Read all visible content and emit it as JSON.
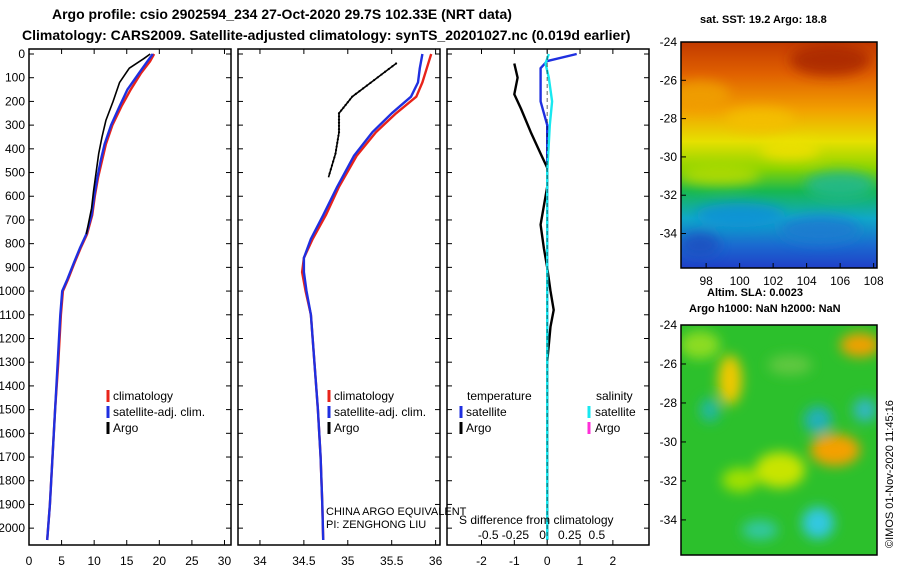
{
  "header": {
    "line1": "Argo profile: csio 2902594_234 27-Oct-2020 29.7S 102.33E (NRT data)",
    "line2": "Climatology: CARS2009. Satellite-adjusted climatology: synTS_20201027.nc (0.019d earlier)"
  },
  "colors": {
    "climatology": "#e8231a",
    "satellite": "#1f2fe0",
    "argo": "#000000",
    "salinity_satellite": "#18e8f0",
    "salinity_argo": "#ff2fd8"
  },
  "chart_data": [
    {
      "type": "line",
      "panel": "temperature",
      "ylabel_ticks": [
        "0",
        "100",
        "200",
        "300",
        "400",
        "500",
        "600",
        "700",
        "800",
        "900",
        "1000",
        "1100",
        "1200",
        "1300",
        "1400",
        "1500",
        "1600",
        "1700",
        "1800",
        "1900",
        "2000"
      ],
      "xticks": [
        "0",
        "5",
        "10",
        "15",
        "20",
        "25",
        "30"
      ],
      "xlim": [
        0,
        31
      ],
      "ylim": [
        2050,
        0
      ],
      "series": [
        {
          "name": "climatology",
          "color": "#e8231a",
          "points": [
            [
              19.2,
              0
            ],
            [
              18.6,
              30
            ],
            [
              17.2,
              80
            ],
            [
              15.6,
              150
            ],
            [
              14.2,
              220
            ],
            [
              12.8,
              300
            ],
            [
              11.8,
              380
            ],
            [
              11.2,
              450
            ],
            [
              10.6,
              520
            ],
            [
              10.1,
              600
            ],
            [
              9.7,
              680
            ],
            [
              8.9,
              760
            ],
            [
              7.9,
              820
            ],
            [
              7.0,
              880
            ],
            [
              6.0,
              950
            ],
            [
              5.2,
              1000
            ],
            [
              4.9,
              1100
            ],
            [
              4.5,
              1300
            ],
            [
              4.0,
              1500
            ],
            [
              3.6,
              1700
            ],
            [
              3.2,
              1900
            ],
            [
              2.8,
              2050
            ]
          ]
        },
        {
          "name": "satellite-adj. clim.",
          "color": "#1f2fe0",
          "points": [
            [
              19.0,
              0
            ],
            [
              18.2,
              30
            ],
            [
              16.9,
              80
            ],
            [
              15.1,
              150
            ],
            [
              13.9,
              220
            ],
            [
              12.6,
              300
            ],
            [
              11.6,
              380
            ],
            [
              11.0,
              450
            ],
            [
              10.5,
              520
            ],
            [
              10.0,
              600
            ],
            [
              9.6,
              680
            ],
            [
              8.8,
              760
            ],
            [
              7.8,
              820
            ],
            [
              6.9,
              880
            ],
            [
              5.9,
              950
            ],
            [
              5.1,
              1000
            ],
            [
              4.8,
              1100
            ],
            [
              4.4,
              1300
            ],
            [
              4.0,
              1500
            ],
            [
              3.6,
              1700
            ],
            [
              3.2,
              1900
            ],
            [
              2.8,
              2050
            ]
          ]
        },
        {
          "name": "Argo",
          "color": "#000000",
          "points": [
            [
              18.6,
              0
            ],
            [
              17.6,
              20
            ],
            [
              15.4,
              60
            ],
            [
              13.9,
              120
            ],
            [
              12.9,
              200
            ],
            [
              11.8,
              280
            ],
            [
              11.2,
              350
            ],
            [
              10.7,
              420
            ],
            [
              10.3,
              500
            ],
            [
              9.9,
              580
            ],
            [
              9.6,
              650
            ],
            [
              8.8,
              760
            ]
          ]
        }
      ],
      "legend": [
        "climatology",
        "satellite-adj. clim.",
        "Argo"
      ]
    },
    {
      "type": "line",
      "panel": "salinity",
      "xticks": [
        "34",
        "34.5",
        "35",
        "35.5",
        "36"
      ],
      "xlim": [
        33.75,
        36.05
      ],
      "ylim": [
        2050,
        0
      ],
      "series": [
        {
          "name": "climatology",
          "color": "#e8231a",
          "points": [
            [
              35.95,
              0
            ],
            [
              35.9,
              60
            ],
            [
              35.85,
              120
            ],
            [
              35.78,
              180
            ],
            [
              35.55,
              250
            ],
            [
              35.32,
              330
            ],
            [
              35.1,
              430
            ],
            [
              34.9,
              560
            ],
            [
              34.75,
              680
            ],
            [
              34.6,
              780
            ],
            [
              34.5,
              860
            ],
            [
              34.48,
              920
            ],
            [
              34.52,
              1000
            ],
            [
              34.58,
              1100
            ],
            [
              34.62,
              1300
            ],
            [
              34.66,
              1500
            ],
            [
              34.69,
              1700
            ],
            [
              34.71,
              1900
            ],
            [
              34.72,
              2050
            ]
          ]
        },
        {
          "name": "satellite-adj. clim.",
          "color": "#1f2fe0",
          "points": [
            [
              35.85,
              0
            ],
            [
              35.82,
              60
            ],
            [
              35.8,
              120
            ],
            [
              35.72,
              180
            ],
            [
              35.5,
              250
            ],
            [
              35.28,
              330
            ],
            [
              35.07,
              430
            ],
            [
              34.88,
              560
            ],
            [
              34.72,
              680
            ],
            [
              34.58,
              780
            ],
            [
              34.5,
              860
            ],
            [
              34.5,
              920
            ],
            [
              34.53,
              1000
            ],
            [
              34.58,
              1100
            ],
            [
              34.62,
              1300
            ],
            [
              34.66,
              1500
            ],
            [
              34.69,
              1700
            ],
            [
              34.71,
              1900
            ],
            [
              34.72,
              2050
            ]
          ]
        },
        {
          "name": "Argo",
          "color": "#000000",
          "points": [
            [
              35.55,
              40
            ],
            [
              35.3,
              110
            ],
            [
              35.05,
              180
            ],
            [
              34.9,
              250
            ],
            [
              34.9,
              330
            ],
            [
              34.86,
              420
            ],
            [
              34.78,
              520
            ]
          ]
        }
      ],
      "legend": [
        "climatology",
        "satellite-adj. clim.",
        "Argo"
      ],
      "annotations": [
        "CHINA ARGO EQUIVALENT",
        "PI: ZENGHONG LIU"
      ]
    },
    {
      "type": "line",
      "panel": "difference",
      "xticks": [
        "-2",
        "-1",
        "0",
        "1",
        "2"
      ],
      "xlim": [
        -3.05,
        3.1
      ],
      "ylim": [
        2050,
        0
      ],
      "series": [
        {
          "name": "temperature satellite",
          "color": "#1f2fe0",
          "points": [
            [
              0.9,
              0
            ],
            [
              0.0,
              30
            ],
            [
              -0.2,
              60
            ],
            [
              -0.2,
              200
            ],
            [
              0.0,
              300
            ],
            [
              0.0,
              2050
            ]
          ]
        },
        {
          "name": "temperature Argo",
          "color": "#000000",
          "points": [
            [
              -1.0,
              40
            ],
            [
              -0.9,
              100
            ],
            [
              -1.0,
              170
            ],
            [
              -0.8,
              230
            ],
            [
              -0.5,
              330
            ],
            [
              -0.2,
              420
            ],
            [
              0.0,
              480
            ],
            [
              0.0,
              560
            ],
            [
              -0.1,
              640
            ],
            [
              -0.2,
              720
            ],
            [
              -0.1,
              820
            ],
            [
              0.0,
              900
            ],
            [
              0.1,
              1000
            ],
            [
              0.2,
              1080
            ],
            [
              0.1,
              1150
            ],
            [
              0.0,
              1300
            ],
            [
              0.0,
              2050
            ]
          ]
        },
        {
          "name": "salinity satellite",
          "color": "#18e8f0",
          "points": [
            [
              0.05,
              0
            ],
            [
              -0.05,
              40
            ],
            [
              0.05,
              100
            ],
            [
              0.15,
              200
            ],
            [
              0.08,
              300
            ],
            [
              0.0,
              500
            ],
            [
              0.0,
              2050
            ]
          ]
        }
      ],
      "legend_left_title": "temperature",
      "legend_right_title": "salinity",
      "legend_left": [
        "satellite",
        "Argo"
      ],
      "legend_right": [
        "satellite",
        "Argo"
      ],
      "secondary_xlabel": "S difference from climatology",
      "secondary_xticks": [
        "-0.5",
        "-0.25",
        "0",
        "0.25",
        "0.5"
      ]
    },
    {
      "type": "heatmap",
      "panel": "sst_map",
      "title": "sat. SST: 19.2 Argo: 18.8",
      "yticks": [
        "-24",
        "-26",
        "-28",
        "-30",
        "-32",
        "-34"
      ],
      "xticks": [
        "98",
        "100",
        "102",
        "104",
        "106",
        "108"
      ],
      "xlim": [
        96.5,
        108.2
      ],
      "ylim": [
        -35.8,
        -24
      ]
    },
    {
      "type": "heatmap",
      "panel": "sla_map",
      "title1": "Altim. SLA: 0.0023",
      "title2": "Argo h1000: NaN h2000: NaN",
      "yticks": [
        "-24",
        "-26",
        "-28",
        "-30",
        "-32",
        "-34"
      ]
    }
  ],
  "footer": {
    "credit": "©IMOS 01-Nov-2020 11:45:16"
  }
}
